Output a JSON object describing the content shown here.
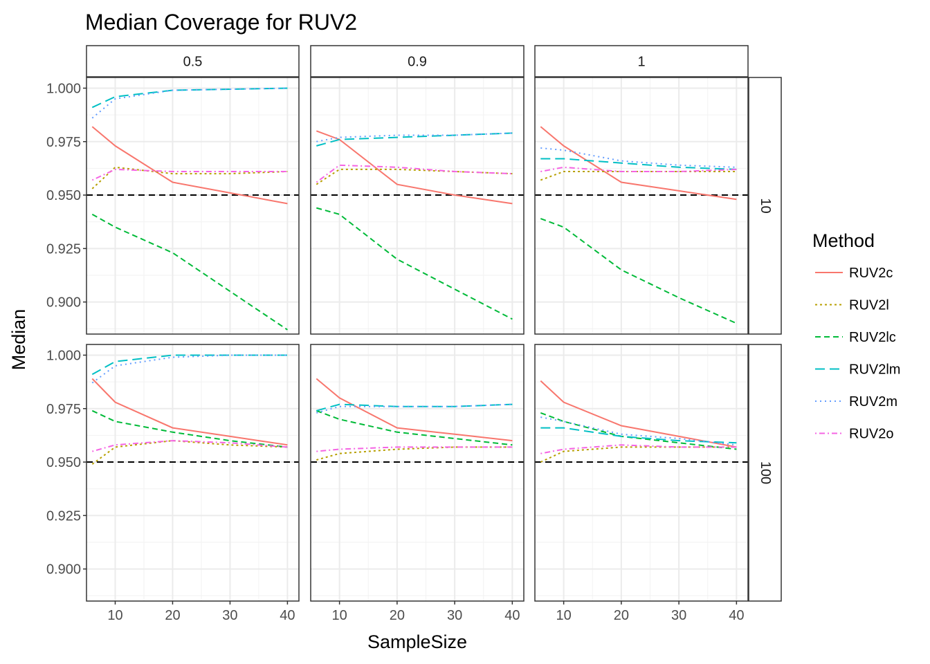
{
  "chart_data": {
    "type": "line",
    "title": "Median Coverage for RUV2",
    "xlabel": "SampleSize",
    "ylabel": "Median",
    "facet_columns": [
      "0.5",
      "0.9",
      "1"
    ],
    "facet_rows": [
      "10",
      "100"
    ],
    "x": [
      6,
      10,
      20,
      30,
      40
    ],
    "x_ticks": [
      10,
      20,
      30,
      40
    ],
    "x_tick_labels": [
      "10",
      "20",
      "30",
      "40"
    ],
    "xlim": [
      5,
      42
    ],
    "y_ticks": [
      0.9,
      0.925,
      0.95,
      0.975,
      1.0
    ],
    "y_tick_labels": [
      "0.900",
      "0.925",
      "0.950",
      "0.975",
      "1.000"
    ],
    "ylim": [
      0.885,
      1.005
    ],
    "reference_line": 0.95,
    "grid": true,
    "legend": {
      "title": "Method",
      "position": "right",
      "items": [
        {
          "name": "RUV2c",
          "color": "#F8766D",
          "dash": "solid"
        },
        {
          "name": "RUV2l",
          "color": "#B79F00",
          "dash": "dotted"
        },
        {
          "name": "RUV2lc",
          "color": "#00BA38",
          "dash": "dashed"
        },
        {
          "name": "RUV2lm",
          "color": "#00BFC4",
          "dash": "longdash"
        },
        {
          "name": "RUV2m",
          "color": "#619CFF",
          "dash": "dotdense"
        },
        {
          "name": "RUV2o",
          "color": "#F564E3",
          "dash": "dotdash"
        }
      ]
    },
    "panels": [
      {
        "row": "10",
        "col": "0.5",
        "series": [
          {
            "name": "RUV2c",
            "values": [
              0.982,
              0.973,
              0.956,
              0.951,
              0.946
            ]
          },
          {
            "name": "RUV2l",
            "values": [
              0.953,
              0.963,
              0.96,
              0.96,
              0.961
            ]
          },
          {
            "name": "RUV2lc",
            "values": [
              0.941,
              0.935,
              0.923,
              0.905,
              0.887
            ]
          },
          {
            "name": "RUV2lm",
            "values": [
              0.991,
              0.996,
              0.999,
              0.9995,
              1.0
            ]
          },
          {
            "name": "RUV2m",
            "values": [
              0.986,
              0.995,
              0.999,
              0.9995,
              1.0
            ]
          },
          {
            "name": "RUV2o",
            "values": [
              0.957,
              0.962,
              0.961,
              0.961,
              0.961
            ]
          }
        ]
      },
      {
        "row": "10",
        "col": "0.9",
        "series": [
          {
            "name": "RUV2c",
            "values": [
              0.98,
              0.976,
              0.955,
              0.95,
              0.946
            ]
          },
          {
            "name": "RUV2l",
            "values": [
              0.955,
              0.962,
              0.962,
              0.961,
              0.96
            ]
          },
          {
            "name": "RUV2lc",
            "values": [
              0.944,
              0.941,
              0.92,
              0.906,
              0.892
            ]
          },
          {
            "name": "RUV2lm",
            "values": [
              0.973,
              0.976,
              0.977,
              0.978,
              0.979
            ]
          },
          {
            "name": "RUV2m",
            "values": [
              0.975,
              0.977,
              0.978,
              0.978,
              0.979
            ]
          },
          {
            "name": "RUV2o",
            "values": [
              0.956,
              0.964,
              0.963,
              0.961,
              0.96
            ]
          }
        ]
      },
      {
        "row": "10",
        "col": "1",
        "series": [
          {
            "name": "RUV2c",
            "values": [
              0.982,
              0.973,
              0.956,
              0.952,
              0.948
            ]
          },
          {
            "name": "RUV2l",
            "values": [
              0.957,
              0.961,
              0.961,
              0.961,
              0.961
            ]
          },
          {
            "name": "RUV2lc",
            "values": [
              0.939,
              0.935,
              0.915,
              0.902,
              0.89
            ]
          },
          {
            "name": "RUV2lm",
            "values": [
              0.967,
              0.967,
              0.965,
              0.963,
              0.962
            ]
          },
          {
            "name": "RUV2m",
            "values": [
              0.972,
              0.971,
              0.966,
              0.964,
              0.963
            ]
          },
          {
            "name": "RUV2o",
            "values": [
              0.961,
              0.963,
              0.961,
              0.961,
              0.962
            ]
          }
        ]
      },
      {
        "row": "100",
        "col": "0.5",
        "series": [
          {
            "name": "RUV2c",
            "values": [
              0.989,
              0.978,
              0.966,
              0.962,
              0.958
            ]
          },
          {
            "name": "RUV2l",
            "values": [
              0.949,
              0.957,
              0.96,
              0.958,
              0.957
            ]
          },
          {
            "name": "RUV2lc",
            "values": [
              0.974,
              0.969,
              0.964,
              0.96,
              0.957
            ]
          },
          {
            "name": "RUV2lm",
            "values": [
              0.991,
              0.997,
              1.0,
              1.0,
              1.0
            ]
          },
          {
            "name": "RUV2m",
            "values": [
              0.987,
              0.995,
              0.999,
              1.0,
              1.0
            ]
          },
          {
            "name": "RUV2o",
            "values": [
              0.955,
              0.958,
              0.96,
              0.959,
              0.957
            ]
          }
        ]
      },
      {
        "row": "100",
        "col": "0.9",
        "series": [
          {
            "name": "RUV2c",
            "values": [
              0.989,
              0.98,
              0.966,
              0.963,
              0.96
            ]
          },
          {
            "name": "RUV2l",
            "values": [
              0.951,
              0.954,
              0.956,
              0.957,
              0.957
            ]
          },
          {
            "name": "RUV2lc",
            "values": [
              0.974,
              0.97,
              0.964,
              0.961,
              0.958
            ]
          },
          {
            "name": "RUV2lm",
            "values": [
              0.974,
              0.977,
              0.976,
              0.976,
              0.977
            ]
          },
          {
            "name": "RUV2m",
            "values": [
              0.973,
              0.976,
              0.976,
              0.976,
              0.977
            ]
          },
          {
            "name": "RUV2o",
            "values": [
              0.955,
              0.956,
              0.957,
              0.957,
              0.957
            ]
          }
        ]
      },
      {
        "row": "100",
        "col": "1",
        "series": [
          {
            "name": "RUV2c",
            "values": [
              0.988,
              0.978,
              0.967,
              0.962,
              0.957
            ]
          },
          {
            "name": "RUV2l",
            "values": [
              0.95,
              0.955,
              0.957,
              0.957,
              0.957
            ]
          },
          {
            "name": "RUV2lc",
            "values": [
              0.973,
              0.969,
              0.962,
              0.959,
              0.956
            ]
          },
          {
            "name": "RUV2lm",
            "values": [
              0.966,
              0.966,
              0.962,
              0.96,
              0.959
            ]
          },
          {
            "name": "RUV2m",
            "values": [
              0.971,
              0.969,
              0.963,
              0.961,
              0.958
            ]
          },
          {
            "name": "RUV2o",
            "values": [
              0.954,
              0.956,
              0.958,
              0.957,
              0.957
            ]
          }
        ]
      }
    ]
  }
}
